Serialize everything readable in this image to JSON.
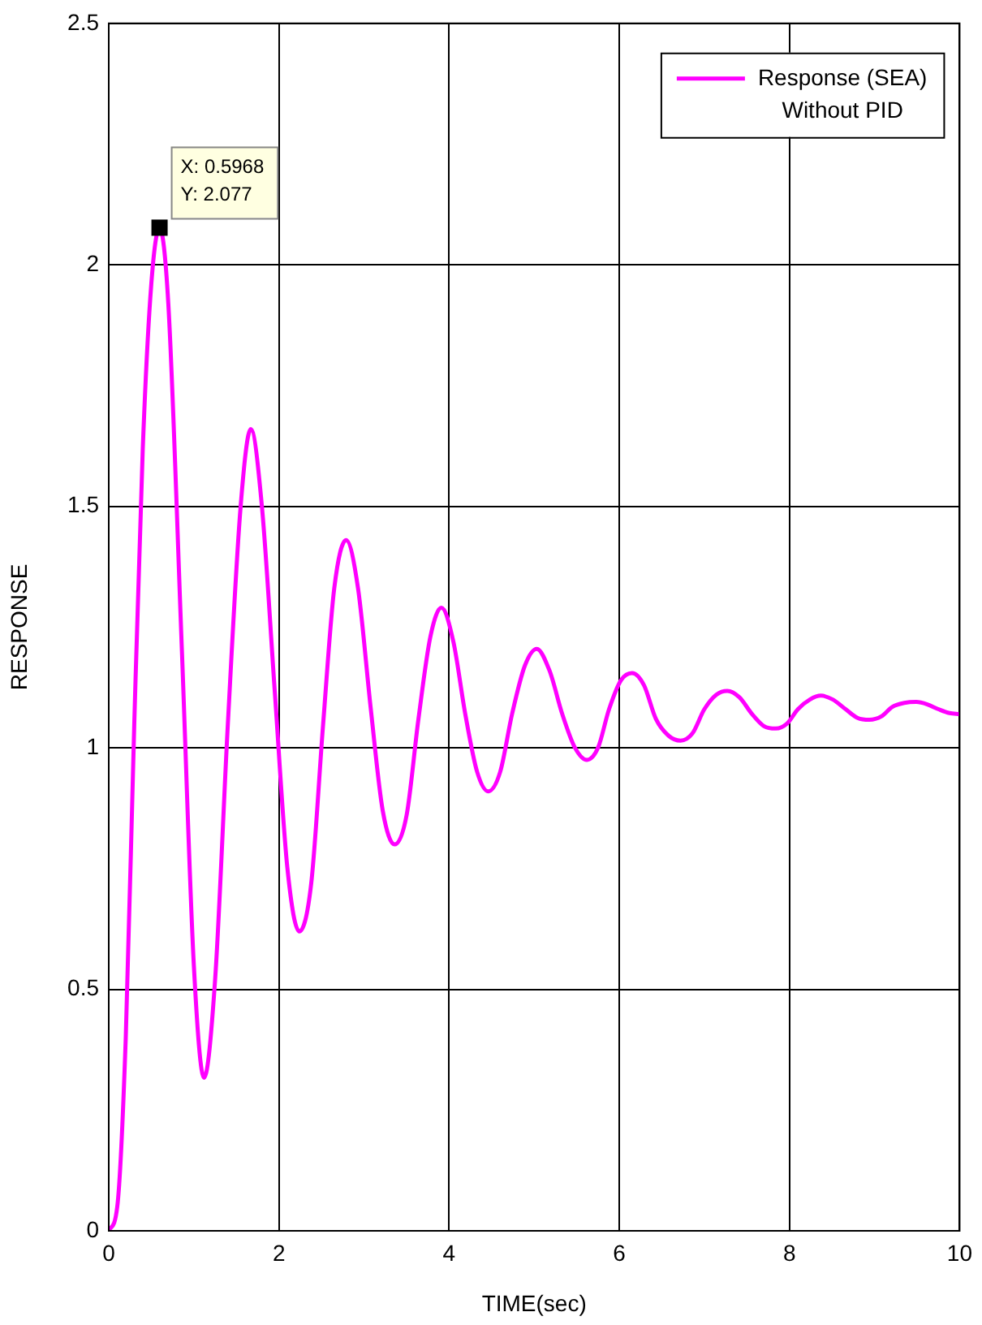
{
  "chart_data": {
    "type": "line",
    "xlabel": "TIME(sec)",
    "ylabel": "RESPONSE",
    "xlim": [
      0,
      10
    ],
    "xticks": [
      0,
      2,
      4,
      6,
      8,
      10
    ],
    "ylim": [
      0,
      2.5
    ],
    "yticks": [
      0,
      0.5,
      1,
      1.5,
      2,
      2.5
    ],
    "grid": true,
    "legend": "top right",
    "marker": "none",
    "line_style": "solid",
    "annotations": [
      {
        "text": "X: 0.5968\nY: 2.077",
        "x": 0.5968,
        "y": 2.077
      }
    ],
    "series": [
      {
        "name": "Response (SEA)\nWithout PID",
        "color": "#ff00ff",
        "x": [
          0,
          0.1,
          0.2,
          0.3,
          0.4,
          0.5,
          0.5968,
          0.7,
          0.86,
          1.0,
          1.12,
          1.25,
          1.4,
          1.55,
          1.67,
          1.8,
          1.95,
          2.1,
          2.24,
          2.38,
          2.52,
          2.65,
          2.79,
          2.93,
          3.08,
          3.22,
          3.36,
          3.5,
          3.64,
          3.78,
          3.91,
          4.05,
          4.19,
          4.33,
          4.46,
          4.6,
          4.74,
          4.89,
          5.03,
          5.18,
          5.33,
          5.48,
          5.62,
          5.75,
          5.88,
          6.02,
          6.15,
          6.29,
          6.43,
          6.58,
          6.72,
          6.86,
          7.0,
          7.14,
          7.27,
          7.41,
          7.56,
          7.7,
          7.84,
          7.97,
          8.1,
          8.24,
          8.37,
          8.51,
          8.66,
          8.8,
          8.94,
          9.08,
          9.21,
          9.35,
          9.49,
          9.62,
          9.75,
          9.88,
          10
        ],
        "values": [
          0,
          0.05,
          0.4,
          1.05,
          1.62,
          1.96,
          2.077,
          1.92,
          1.2,
          0.55,
          0.317,
          0.52,
          1.05,
          1.5,
          1.66,
          1.5,
          1.12,
          0.75,
          0.62,
          0.72,
          1.05,
          1.33,
          1.43,
          1.33,
          1.08,
          0.87,
          0.8,
          0.86,
          1.06,
          1.23,
          1.29,
          1.22,
          1.07,
          0.95,
          0.91,
          0.95,
          1.07,
          1.17,
          1.205,
          1.16,
          1.07,
          1.0,
          0.975,
          1.0,
          1.08,
          1.14,
          1.155,
          1.13,
          1.06,
          1.025,
          1.015,
          1.03,
          1.08,
          1.11,
          1.118,
          1.105,
          1.07,
          1.045,
          1.04,
          1.05,
          1.08,
          1.1,
          1.108,
          1.1,
          1.08,
          1.062,
          1.058,
          1.065,
          1.085,
          1.093,
          1.095,
          1.09,
          1.08,
          1.072,
          1.07
        ]
      }
    ]
  }
}
